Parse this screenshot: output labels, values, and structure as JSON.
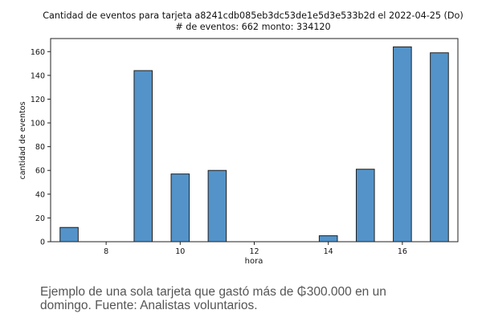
{
  "chart_data": {
    "type": "bar",
    "title": "Cantidad de eventos para tarjeta a8241cdb085eb3dc53de1e5d3e533b2d el 2022-04-25 (Do)",
    "subtitle": "# de eventos: 662 monto: 334120",
    "xlabel": "hora",
    "ylabel": "cantidad de eventos",
    "x": [
      7,
      9,
      10,
      11,
      14,
      15,
      16,
      17
    ],
    "values": [
      12,
      144,
      57,
      60,
      5,
      61,
      164,
      159
    ],
    "xlim": [
      6.5,
      17.5
    ],
    "ylim": [
      0,
      171
    ],
    "xticks": [
      "8",
      "10",
      "12",
      "14",
      "16"
    ],
    "yticks": [
      "0",
      "20",
      "40",
      "60",
      "80",
      "100",
      "120",
      "140",
      "160"
    ],
    "grid": false,
    "bar_color": "#5393c9",
    "edge_color": "#1f1f1f"
  },
  "caption": {
    "line1": "Ejemplo de una sola tarjeta que gastó más de ₲300.000 en un",
    "line2": "domingo. Fuente: Analistas voluntarios."
  }
}
